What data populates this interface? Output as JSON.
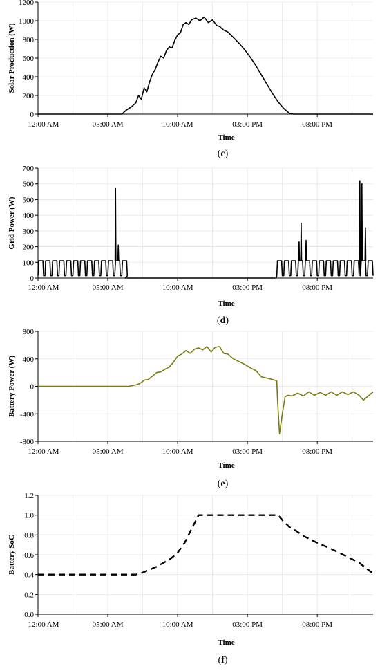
{
  "figure": {
    "x_tick_labels": [
      "12:00 AM",
      "05:00 AM",
      "10:00 AM",
      "03:00 PM",
      "08:00 PM"
    ],
    "x_axis_title": "Time"
  },
  "chart_data": [
    {
      "type": "line",
      "panel_label": "(c)",
      "panel_letter": "c",
      "ylabel": "Solar Production (W)",
      "xlabel": "Time",
      "x_unit": "hours since 12:00 AM",
      "xlim": [
        0,
        24
      ],
      "ylim": [
        0,
        1200
      ],
      "yticks": [
        0,
        200,
        400,
        600,
        800,
        1000,
        1200
      ],
      "grid": true,
      "color": "#000000",
      "series": [
        {
          "x": [
            0,
            6,
            6.3,
            6.7,
            7.0,
            7.2,
            7.4,
            7.6,
            7.8,
            8.0,
            8.2,
            8.4,
            8.6,
            8.8,
            9.0,
            9.2,
            9.4,
            9.6,
            9.8,
            10.0,
            10.2,
            10.4,
            10.6,
            10.8,
            11.0,
            11.3,
            11.6,
            11.9,
            12.2,
            12.5,
            12.8,
            13.0,
            13.3,
            13.6,
            14.0,
            14.4,
            14.8,
            15.2,
            15.6,
            16.0,
            16.4,
            16.8,
            17.2,
            17.6,
            18.0,
            18.3,
            24
          ],
          "y": [
            0,
            0,
            40,
            80,
            120,
            200,
            160,
            280,
            240,
            350,
            430,
            480,
            560,
            620,
            600,
            680,
            720,
            710,
            790,
            850,
            870,
            960,
            980,
            960,
            1010,
            1030,
            1000,
            1040,
            980,
            1010,
            950,
            940,
            900,
            880,
            820,
            760,
            690,
            610,
            520,
            420,
            320,
            220,
            130,
            60,
            10,
            0,
            0
          ]
        }
      ]
    },
    {
      "type": "line",
      "panel_label": "(d)",
      "panel_letter": "d",
      "ylabel": "Grid Power (W)",
      "xlabel": "Time",
      "x_unit": "hours since 12:00 AM",
      "xlim": [
        0,
        24
      ],
      "ylim": [
        0,
        700
      ],
      "yticks": [
        0,
        100,
        200,
        300,
        400,
        500,
        600,
        700
      ],
      "grid": true,
      "color": "#000000",
      "cycle": {
        "base": 15,
        "high": 110,
        "period_hours": 0.5
      },
      "spikes": [
        {
          "x": 5.55,
          "y": 570
        },
        {
          "x": 5.75,
          "y": 210
        },
        {
          "x": 18.7,
          "y": 230
        },
        {
          "x": 18.85,
          "y": 350
        },
        {
          "x": 19.2,
          "y": 240
        },
        {
          "x": 23.05,
          "y": 620
        },
        {
          "x": 23.2,
          "y": 600
        },
        {
          "x": 23.45,
          "y": 320
        }
      ],
      "series": [
        {
          "name": "",
          "segments": "cyclic 0–6.2 h and 17.1–24 h, zero between"
        }
      ]
    },
    {
      "type": "line",
      "panel_label": "(e)",
      "panel_letter": "e",
      "ylabel": "Battery Power (W)",
      "xlabel": "Time",
      "x_unit": "hours since 12:00 AM",
      "xlim": [
        0,
        24
      ],
      "ylim": [
        -800,
        800
      ],
      "yticks": [
        -800,
        -400,
        0,
        400,
        800
      ],
      "grid": true,
      "color": "#7a7a10",
      "series": [
        {
          "x": [
            0,
            6.5,
            7.0,
            7.3,
            7.6,
            7.9,
            8.2,
            8.5,
            8.8,
            9.1,
            9.4,
            9.7,
            10.0,
            10.3,
            10.6,
            10.9,
            11.2,
            11.5,
            11.8,
            12.1,
            12.4,
            12.7,
            13.0,
            13.3,
            13.6,
            14.0,
            14.4,
            14.8,
            15.2,
            15.6,
            16.0,
            16.4,
            16.8,
            17.1,
            17.15,
            17.3,
            17.5,
            17.7,
            17.9,
            18.2,
            18.6,
            19.0,
            19.4,
            19.8,
            20.2,
            20.6,
            21.0,
            21.4,
            21.8,
            22.2,
            22.6,
            23.0,
            23.3,
            23.6,
            24
          ],
          "y": [
            0,
            0,
            20,
            40,
            90,
            100,
            150,
            200,
            210,
            250,
            280,
            350,
            440,
            470,
            520,
            480,
            540,
            560,
            530,
            580,
            500,
            570,
            580,
            480,
            470,
            400,
            360,
            320,
            270,
            230,
            140,
            120,
            100,
            80,
            -180,
            -690,
            -400,
            -150,
            -130,
            -140,
            -100,
            -140,
            -80,
            -130,
            -90,
            -130,
            -80,
            -130,
            -80,
            -120,
            -80,
            -130,
            -200,
            -150,
            -80
          ]
        }
      ]
    },
    {
      "type": "line",
      "panel_label": "(f)",
      "panel_letter": "f",
      "ylabel": "Battery SoC",
      "xlabel": "Time",
      "x_unit": "hours since 12:00 AM",
      "xlim": [
        0,
        24
      ],
      "ylim": [
        0.0,
        1.2
      ],
      "yticks": [
        "0.0",
        "0.2",
        "0.4",
        "0.6",
        "0.8",
        "1.0",
        "1.2"
      ],
      "grid": true,
      "dashed": true,
      "color": "#000000",
      "series": [
        {
          "x": [
            0,
            7.0,
            7.5,
            8.0,
            8.5,
            9.0,
            9.5,
            10.0,
            10.5,
            11.0,
            11.5,
            17.2,
            17.5,
            18.0,
            18.5,
            19.0,
            20.0,
            21.0,
            22.0,
            23.0,
            24.0
          ],
          "y": [
            0.4,
            0.4,
            0.42,
            0.45,
            0.48,
            0.52,
            0.56,
            0.62,
            0.72,
            0.86,
            1.0,
            1.0,
            0.95,
            0.88,
            0.84,
            0.79,
            0.72,
            0.66,
            0.59,
            0.52,
            0.41
          ]
        }
      ]
    }
  ]
}
